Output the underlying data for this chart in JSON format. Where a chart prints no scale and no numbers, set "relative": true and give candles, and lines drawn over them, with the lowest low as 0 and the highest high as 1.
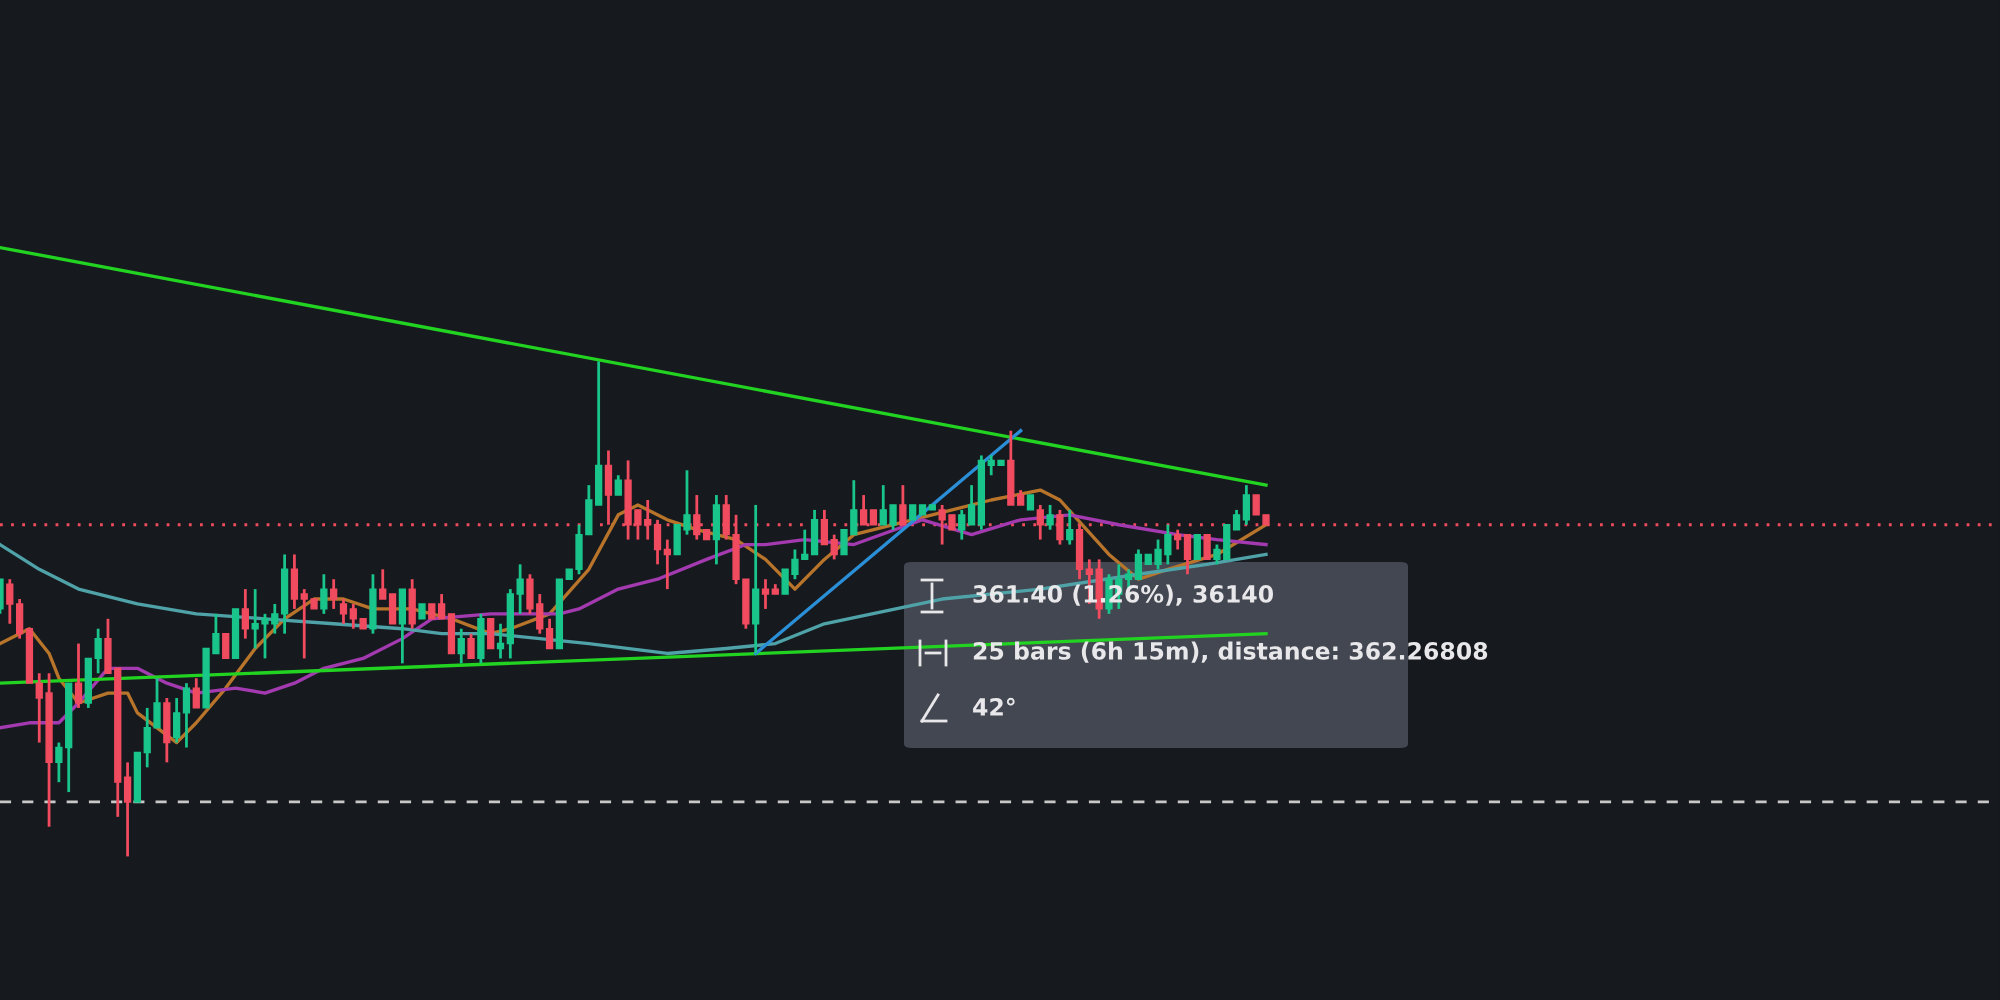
{
  "chart_data": {
    "type": "candlestick",
    "relative": true,
    "categories": [
      null,
      null,
      null,
      null,
      null,
      null,
      null,
      null,
      null,
      null,
      null,
      null,
      null,
      null,
      null,
      null,
      null,
      null,
      null,
      null,
      null,
      null,
      null,
      null,
      null,
      null,
      null,
      null,
      null,
      null,
      null,
      null,
      null,
      null,
      null,
      null,
      null,
      null,
      null,
      null,
      null,
      null,
      null,
      null,
      null,
      null,
      null,
      null,
      null,
      null,
      null,
      null,
      null,
      null,
      null,
      null,
      null,
      null,
      null,
      null,
      null,
      null,
      null,
      null,
      null,
      null,
      null,
      null,
      null,
      null,
      null,
      null,
      null,
      null,
      null,
      null,
      null,
      null,
      null,
      null,
      null,
      null,
      null,
      null,
      null,
      null,
      null,
      null,
      null,
      null,
      null,
      null,
      null,
      null,
      null,
      null,
      null,
      null,
      null,
      null,
      null,
      null,
      null,
      null,
      null,
      null,
      null,
      null,
      null,
      null,
      null,
      null,
      null,
      null,
      null,
      null,
      null,
      null,
      null,
      null,
      null,
      null,
      null,
      null,
      null,
      null,
      null,
      null,
      null,
      null
    ],
    "ohlc": [
      [
        0.5,
        0.56,
        0.49,
        0.56
      ],
      [
        0.55,
        0.56,
        0.47,
        0.51
      ],
      [
        0.51,
        0.52,
        0.44,
        0.45
      ],
      [
        0.46,
        0.46,
        0.35,
        0.35
      ],
      [
        0.35,
        0.37,
        0.23,
        0.32
      ],
      [
        0.33,
        0.37,
        0.06,
        0.19
      ],
      [
        0.19,
        0.23,
        0.15,
        0.22
      ],
      [
        0.22,
        0.35,
        0.13,
        0.35
      ],
      [
        0.35,
        0.43,
        0.3,
        0.31
      ],
      [
        0.31,
        0.4,
        0.3,
        0.4
      ],
      [
        0.4,
        0.46,
        0.37,
        0.44
      ],
      [
        0.44,
        0.48,
        0.37,
        0.37
      ],
      [
        0.38,
        0.38,
        0.08,
        0.15
      ],
      [
        0.16,
        0.19,
        0.0,
        0.11
      ],
      [
        0.11,
        0.21,
        0.11,
        0.21
      ],
      [
        0.21,
        0.3,
        0.18,
        0.26
      ],
      [
        0.26,
        0.36,
        0.26,
        0.31
      ],
      [
        0.31,
        0.32,
        0.19,
        0.23
      ],
      [
        0.24,
        0.32,
        0.23,
        0.29
      ],
      [
        0.29,
        0.35,
        0.22,
        0.34
      ],
      [
        0.34,
        0.36,
        0.3,
        0.3
      ],
      [
        0.3,
        0.42,
        0.3,
        0.42
      ],
      [
        0.41,
        0.49,
        0.41,
        0.45
      ],
      [
        0.45,
        0.45,
        0.4,
        0.4
      ],
      [
        0.4,
        0.5,
        0.4,
        0.5
      ],
      [
        0.5,
        0.54,
        0.44,
        0.46
      ],
      [
        0.46,
        0.54,
        0.42,
        0.47
      ],
      [
        0.47,
        0.49,
        0.4,
        0.48
      ],
      [
        0.47,
        0.51,
        0.45,
        0.49
      ],
      [
        0.49,
        0.61,
        0.45,
        0.58
      ],
      [
        0.58,
        0.61,
        0.5,
        0.52
      ],
      [
        0.53,
        0.54,
        0.4,
        0.52
      ],
      [
        0.52,
        0.52,
        0.5,
        0.5
      ],
      [
        0.5,
        0.57,
        0.49,
        0.54
      ],
      [
        0.54,
        0.56,
        0.5,
        0.52
      ],
      [
        0.51,
        0.52,
        0.47,
        0.49
      ],
      [
        0.5,
        0.51,
        0.46,
        0.48
      ],
      [
        0.48,
        0.48,
        0.46,
        0.46
      ],
      [
        0.46,
        0.57,
        0.45,
        0.54
      ],
      [
        0.54,
        0.58,
        0.52,
        0.52
      ],
      [
        0.53,
        0.53,
        0.47,
        0.47
      ],
      [
        0.47,
        0.54,
        0.39,
        0.54
      ],
      [
        0.54,
        0.56,
        0.46,
        0.47
      ],
      [
        0.48,
        0.51,
        0.48,
        0.51
      ],
      [
        0.51,
        0.51,
        0.48,
        0.48
      ],
      [
        0.51,
        0.53,
        0.48,
        0.48
      ],
      [
        0.49,
        0.49,
        0.41,
        0.41
      ],
      [
        0.41,
        0.46,
        0.39,
        0.44
      ],
      [
        0.44,
        0.45,
        0.4,
        0.4
      ],
      [
        0.4,
        0.49,
        0.39,
        0.48
      ],
      [
        0.48,
        0.48,
        0.42,
        0.42
      ],
      [
        0.42,
        0.47,
        0.4,
        0.43
      ],
      [
        0.43,
        0.54,
        0.4,
        0.53
      ],
      [
        0.53,
        0.59,
        0.49,
        0.56
      ],
      [
        0.56,
        0.57,
        0.49,
        0.5
      ],
      [
        0.51,
        0.53,
        0.45,
        0.46
      ],
      [
        0.46,
        0.48,
        0.42,
        0.42
      ],
      [
        0.42,
        0.56,
        0.42,
        0.56
      ],
      [
        0.56,
        0.58,
        0.56,
        0.58
      ],
      [
        0.58,
        0.67,
        0.57,
        0.65
      ],
      [
        0.65,
        0.75,
        0.65,
        0.72
      ],
      [
        0.71,
        1.0,
        0.71,
        0.79
      ],
      [
        0.79,
        0.82,
        0.67,
        0.73
      ],
      [
        0.73,
        0.77,
        0.73,
        0.76
      ],
      [
        0.76,
        0.8,
        0.64,
        0.67
      ],
      [
        0.7,
        0.7,
        0.64,
        0.67
      ],
      [
        0.68,
        0.72,
        0.64,
        0.67
      ],
      [
        0.67,
        0.68,
        0.59,
        0.62
      ],
      [
        0.62,
        0.64,
        0.54,
        0.61
      ],
      [
        0.61,
        0.67,
        0.61,
        0.67
      ],
      [
        0.66,
        0.78,
        0.65,
        0.69
      ],
      [
        0.69,
        0.73,
        0.64,
        0.65
      ],
      [
        0.66,
        0.66,
        0.64,
        0.64
      ],
      [
        0.64,
        0.73,
        0.59,
        0.71
      ],
      [
        0.71,
        0.73,
        0.64,
        0.65
      ],
      [
        0.65,
        0.69,
        0.55,
        0.56
      ],
      [
        0.56,
        0.56,
        0.46,
        0.47
      ],
      [
        0.47,
        0.71,
        0.41,
        0.54
      ],
      [
        0.54,
        0.56,
        0.5,
        0.53
      ],
      [
        0.54,
        0.55,
        0.53,
        0.53
      ],
      [
        0.53,
        0.58,
        0.53,
        0.58
      ],
      [
        0.57,
        0.62,
        0.56,
        0.6
      ],
      [
        0.6,
        0.66,
        0.6,
        0.61
      ],
      [
        0.61,
        0.7,
        0.61,
        0.68
      ],
      [
        0.68,
        0.7,
        0.63,
        0.63
      ],
      [
        0.64,
        0.65,
        0.6,
        0.61
      ],
      [
        0.61,
        0.66,
        0.61,
        0.66
      ],
      [
        0.65,
        0.76,
        0.65,
        0.7
      ],
      [
        0.7,
        0.73,
        0.67,
        0.67
      ],
      [
        0.7,
        0.7,
        0.67,
        0.67
      ],
      [
        0.67,
        0.75,
        0.67,
        0.7
      ],
      [
        0.67,
        0.71,
        0.66,
        0.71
      ],
      [
        0.71,
        0.75,
        0.67,
        0.67
      ],
      [
        0.68,
        0.71,
        0.68,
        0.71
      ],
      [
        0.69,
        0.71,
        0.69,
        0.71
      ],
      [
        0.7,
        0.71,
        0.7,
        0.71
      ],
      [
        0.7,
        0.71,
        0.63,
        0.68
      ],
      [
        0.69,
        0.69,
        0.66,
        0.66
      ],
      [
        0.66,
        0.7,
        0.64,
        0.69
      ],
      [
        0.67,
        0.75,
        0.67,
        0.71
      ],
      [
        0.67,
        0.81,
        0.66,
        0.8
      ],
      [
        0.79,
        0.81,
        0.77,
        0.8
      ],
      [
        0.79,
        0.8,
        0.79,
        0.8
      ],
      [
        0.8,
        0.86,
        0.71,
        0.71
      ],
      [
        0.73,
        0.74,
        0.71,
        0.71
      ],
      [
        0.7,
        0.73,
        0.7,
        0.73
      ],
      [
        0.7,
        0.71,
        0.64,
        0.67
      ],
      [
        0.67,
        0.71,
        0.66,
        0.69
      ],
      [
        0.69,
        0.7,
        0.63,
        0.64
      ],
      [
        0.64,
        0.7,
        0.63,
        0.66
      ],
      [
        0.66,
        0.67,
        0.56,
        0.58
      ],
      [
        0.58,
        0.6,
        0.51,
        0.57
      ],
      [
        0.58,
        0.6,
        0.48,
        0.5
      ],
      [
        0.5,
        0.57,
        0.49,
        0.56
      ],
      [
        0.53,
        0.59,
        0.5,
        0.56
      ],
      [
        0.56,
        0.58,
        0.54,
        0.57
      ],
      [
        0.56,
        0.62,
        0.56,
        0.61
      ],
      [
        0.59,
        0.61,
        0.59,
        0.61
      ],
      [
        0.59,
        0.64,
        0.58,
        0.62
      ],
      [
        0.61,
        0.67,
        0.59,
        0.65
      ],
      [
        0.65,
        0.66,
        0.62,
        0.64
      ],
      [
        0.65,
        0.65,
        0.57,
        0.6
      ],
      [
        0.6,
        0.65,
        0.6,
        0.65
      ],
      [
        0.65,
        0.65,
        0.6,
        0.6
      ],
      [
        0.6,
        0.63,
        0.59,
        0.62
      ],
      [
        0.6,
        0.67,
        0.6,
        0.67
      ],
      [
        0.66,
        0.7,
        0.66,
        0.69
      ],
      [
        0.68,
        0.75,
        0.67,
        0.73
      ],
      [
        0.73,
        0.73,
        0.69,
        0.69
      ],
      [
        0.69,
        0.69,
        0.67,
        0.67
      ]
    ],
    "series": [
      {
        "type": "line",
        "color": "#b8742a",
        "values": [
          0.43,
          null,
          null,
          0.46,
          null,
          0.41,
          0.36,
          null,
          0.31,
          null,
          null,
          0.33,
          null,
          0.33,
          0.29,
          null,
          null,
          null,
          0.23,
          null,
          0.27,
          null,
          null,
          0.34,
          null,
          null,
          0.42,
          null,
          null,
          0.48,
          null,
          null,
          0.52,
          null,
          null,
          0.52,
          null,
          null,
          0.5,
          null,
          null,
          null,
          0.5,
          null,
          null,
          null,
          0.48,
          null,
          null,
          null,
          0.45,
          null,
          0.46,
          null,
          null,
          null,
          0.49,
          null,
          null,
          null,
          0.58,
          null,
          null,
          0.69,
          null,
          0.71,
          null,
          null,
          0.68,
          null,
          null,
          0.66,
          null,
          null,
          null,
          0.64,
          null,
          null,
          0.6,
          null,
          null,
          0.54,
          null,
          null,
          0.6,
          null,
          null,
          0.65,
          null,
          null,
          null,
          null,
          null,
          null,
          null,
          0.69,
          null,
          null,
          null,
          null,
          null,
          0.72,
          null,
          null,
          null,
          null,
          0.74,
          null,
          0.72,
          null,
          null,
          null,
          null,
          0.61,
          null,
          null,
          0.56,
          null,
          null,
          0.58,
          null,
          null,
          null,
          null,
          0.61,
          null,
          null,
          null,
          null,
          0.67
        ]
      },
      {
        "type": "line",
        "color": "#a33ab0",
        "values": [
          0.26,
          null,
          null,
          0.27,
          null,
          null,
          0.27,
          null,
          0.31,
          null,
          null,
          0.38,
          null,
          null,
          0.38,
          null,
          null,
          0.35,
          null,
          null,
          0.33,
          null,
          null,
          null,
          0.34,
          null,
          null,
          0.33,
          null,
          null,
          0.35,
          null,
          null,
          0.38,
          null,
          null,
          null,
          0.4,
          null,
          null,
          null,
          0.44,
          null,
          null,
          0.48,
          null,
          null,
          null,
          null,
          null,
          0.49,
          null,
          null,
          null,
          null,
          null,
          null,
          0.49,
          null,
          0.5,
          null,
          null,
          null,
          0.54,
          null,
          null,
          null,
          0.56,
          null,
          null,
          null,
          null,
          0.6,
          null,
          null,
          null,
          0.63,
          null,
          0.63,
          null,
          null,
          null,
          0.64,
          null,
          null,
          null,
          null,
          0.63,
          null,
          null,
          null,
          null,
          null,
          null,
          0.68,
          null,
          null,
          null,
          null,
          0.65,
          null,
          null,
          null,
          null,
          0.68,
          null,
          null,
          null,
          null,
          0.69,
          null,
          null,
          null,
          null,
          0.67,
          null,
          null,
          null,
          null,
          null,
          0.65,
          null,
          null,
          null,
          0.64,
          null,
          null,
          null,
          null,
          0.63
        ]
      },
      {
        "type": "line",
        "color": "#4fa3a8",
        "values": [
          0.63,
          null,
          null,
          null,
          0.58,
          null,
          null,
          null,
          0.54,
          null,
          null,
          null,
          null,
          null,
          0.51,
          null,
          null,
          null,
          null,
          null,
          0.49,
          null,
          null,
          null,
          null,
          null,
          null,
          0.48,
          null,
          null,
          null,
          null,
          null,
          null,
          0.47,
          null,
          null,
          null,
          null,
          null,
          null,
          0.46,
          null,
          null,
          null,
          0.45,
          null,
          null,
          null,
          null,
          0.45,
          null,
          null,
          null,
          null,
          null,
          null,
          null,
          null,
          null,
          0.43,
          null,
          null,
          null,
          null,
          null,
          null,
          null,
          0.41,
          null,
          null,
          null,
          null,
          null,
          0.42,
          null,
          null,
          null,
          null,
          0.43,
          null,
          null,
          null,
          null,
          0.47,
          null,
          null,
          null,
          null,
          null,
          null,
          null,
          null,
          null,
          null,
          null,
          0.52,
          null,
          null,
          null,
          null,
          null,
          null,
          null,
          null,
          null,
          0.54,
          null,
          null,
          null,
          null,
          null,
          null,
          null,
          null,
          null,
          0.57,
          null,
          null,
          null,
          null,
          null,
          null,
          0.59,
          null,
          null,
          null,
          null,
          null,
          0.61
        ]
      },
      {
        "type": "line",
        "color": "#22d322",
        "values": [
          1.23,
          null,
          null,
          null,
          null,
          null,
          null,
          null,
          null,
          null,
          null,
          null,
          null,
          null,
          null,
          null,
          null,
          null,
          null,
          null,
          null,
          null,
          null,
          null,
          null,
          null,
          null,
          null,
          null,
          null,
          null,
          null,
          null,
          null,
          null,
          null,
          null,
          null,
          null,
          null,
          null,
          null,
          null,
          null,
          null,
          null,
          null,
          null,
          null,
          null,
          null,
          null,
          null,
          null,
          null,
          null,
          null,
          null,
          null,
          null,
          null,
          null,
          null,
          null,
          null,
          null,
          null,
          null,
          null,
          null,
          null,
          null,
          null,
          null,
          null,
          null,
          null,
          null,
          null,
          null,
          null,
          null,
          null,
          null,
          null,
          null,
          null,
          null,
          null,
          null,
          null,
          null,
          null,
          null,
          null,
          null,
          null,
          null,
          null,
          null,
          null,
          null,
          null,
          null,
          null,
          null,
          null,
          null,
          null,
          null,
          null,
          null,
          null,
          null,
          null,
          null,
          null,
          null,
          null,
          null,
          null,
          null,
          null,
          null,
          null,
          null,
          null,
          null,
          null,
          0.75
        ]
      },
      {
        "type": "line",
        "color": "#22d322",
        "values": [
          0.35,
          null,
          null,
          null,
          null,
          null,
          null,
          null,
          null,
          null,
          null,
          null,
          null,
          null,
          null,
          null,
          null,
          null,
          null,
          null,
          null,
          null,
          null,
          null,
          null,
          null,
          null,
          null,
          null,
          null,
          null,
          null,
          null,
          null,
          null,
          null,
          null,
          null,
          null,
          null,
          null,
          null,
          null,
          null,
          null,
          null,
          null,
          null,
          null,
          null,
          null,
          null,
          null,
          null,
          null,
          null,
          null,
          null,
          null,
          null,
          null,
          null,
          null,
          null,
          null,
          null,
          null,
          null,
          null,
          null,
          null,
          null,
          null,
          null,
          null,
          null,
          null,
          null,
          null,
          null,
          null,
          null,
          null,
          null,
          null,
          null,
          null,
          null,
          null,
          null,
          null,
          null,
          null,
          null,
          null,
          null,
          null,
          null,
          null,
          null,
          null,
          null,
          null,
          null,
          null,
          null,
          null,
          null,
          null,
          null,
          null,
          null,
          null,
          null,
          null,
          null,
          null,
          null,
          null,
          null,
          null,
          null,
          null,
          null,
          null,
          null,
          null,
          null,
          null,
          0.45
        ]
      },
      {
        "type": "line",
        "color": "#2b8fd8",
        "values": [
          null,
          null,
          null,
          null,
          null,
          null,
          null,
          null,
          null,
          null,
          null,
          null,
          null,
          null,
          null,
          null,
          null,
          null,
          null,
          null,
          null,
          null,
          null,
          null,
          null,
          null,
          null,
          null,
          null,
          null,
          null,
          null,
          null,
          null,
          null,
          null,
          null,
          null,
          null,
          null,
          null,
          null,
          null,
          null,
          null,
          null,
          null,
          null,
          null,
          null,
          null,
          null,
          null,
          null,
          null,
          null,
          null,
          null,
          null,
          null,
          null,
          null,
          null,
          null,
          null,
          null,
          null,
          null,
          null,
          null,
          null,
          null,
          null,
          null,
          null,
          null,
          null,
          0.41,
          null,
          null,
          null,
          null,
          null,
          null,
          null,
          null,
          null,
          null,
          null,
          null,
          null,
          null,
          null,
          null,
          null,
          null,
          null,
          null,
          null,
          null,
          null,
          null,
          null,
          null,
          0.86,
          null,
          null,
          null,
          null,
          null,
          null,
          null,
          null,
          null,
          null,
          null,
          null,
          null,
          null,
          null,
          null,
          null,
          null,
          null,
          null,
          null,
          null,
          null,
          null,
          null
        ]
      }
    ],
    "ref_lines": [
      {
        "axis": "y",
        "value": 0.67,
        "color": "#f14b5f",
        "line_style": "dotted"
      },
      {
        "axis": "y",
        "value": 0.11,
        "color": "#c8c8c8",
        "line_style": "dashed"
      }
    ],
    "annotations": [
      "361.40 (1.26%), 36140",
      "25 bars (6h 15m), distance: 362.26808",
      "42°"
    ]
  }
}
